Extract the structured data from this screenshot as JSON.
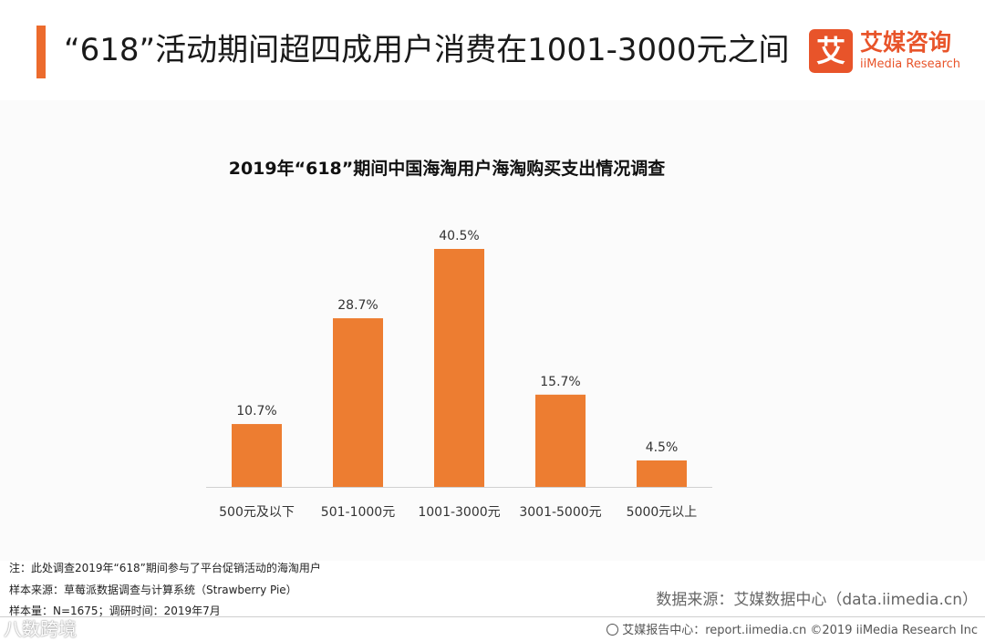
{
  "header": {
    "title": "“618”活动期间超四成用户消费在1001-3000元之间"
  },
  "logo": {
    "mark": "艾",
    "name_cn": "艾媒咨询",
    "name_en": "iiMedia Research"
  },
  "chart_data": {
    "type": "bar",
    "title": "2019年“618”期间中国海淘用户海淘购买支出情况调查",
    "categories": [
      "500元及以下",
      "501-1000元",
      "1001-3000元",
      "3001-5000元",
      "5000元以上"
    ],
    "values": [
      10.7,
      28.7,
      40.5,
      15.7,
      4.5
    ],
    "value_labels": [
      "10.7%",
      "28.7%",
      "40.5%",
      "15.7%",
      "4.5%"
    ],
    "unit": "%",
    "bar_color": "#ed7d31",
    "xlabel": "",
    "ylabel": "",
    "ylim": [
      0,
      40.5
    ],
    "grid": false,
    "legend": "none"
  },
  "notes": {
    "note1": "注：此处调查2019年“618”期间参与了平台促销活动的海淘用户",
    "note2": "样本来源：草莓派数据调查与计算系统（Strawberry  Pie）",
    "note3": "样本量：N=1675；调研时间：2019年7月"
  },
  "source": "数据来源：艾媒数据中心（data.iimedia.cn）",
  "footer": "艾媒报告中心：report.iimedia.cn  ©2019  iiMedia Research  Inc",
  "watermark": "八数跨境",
  "colors": {
    "accent": "#ec6b2d",
    "brand": "#e8542a"
  }
}
